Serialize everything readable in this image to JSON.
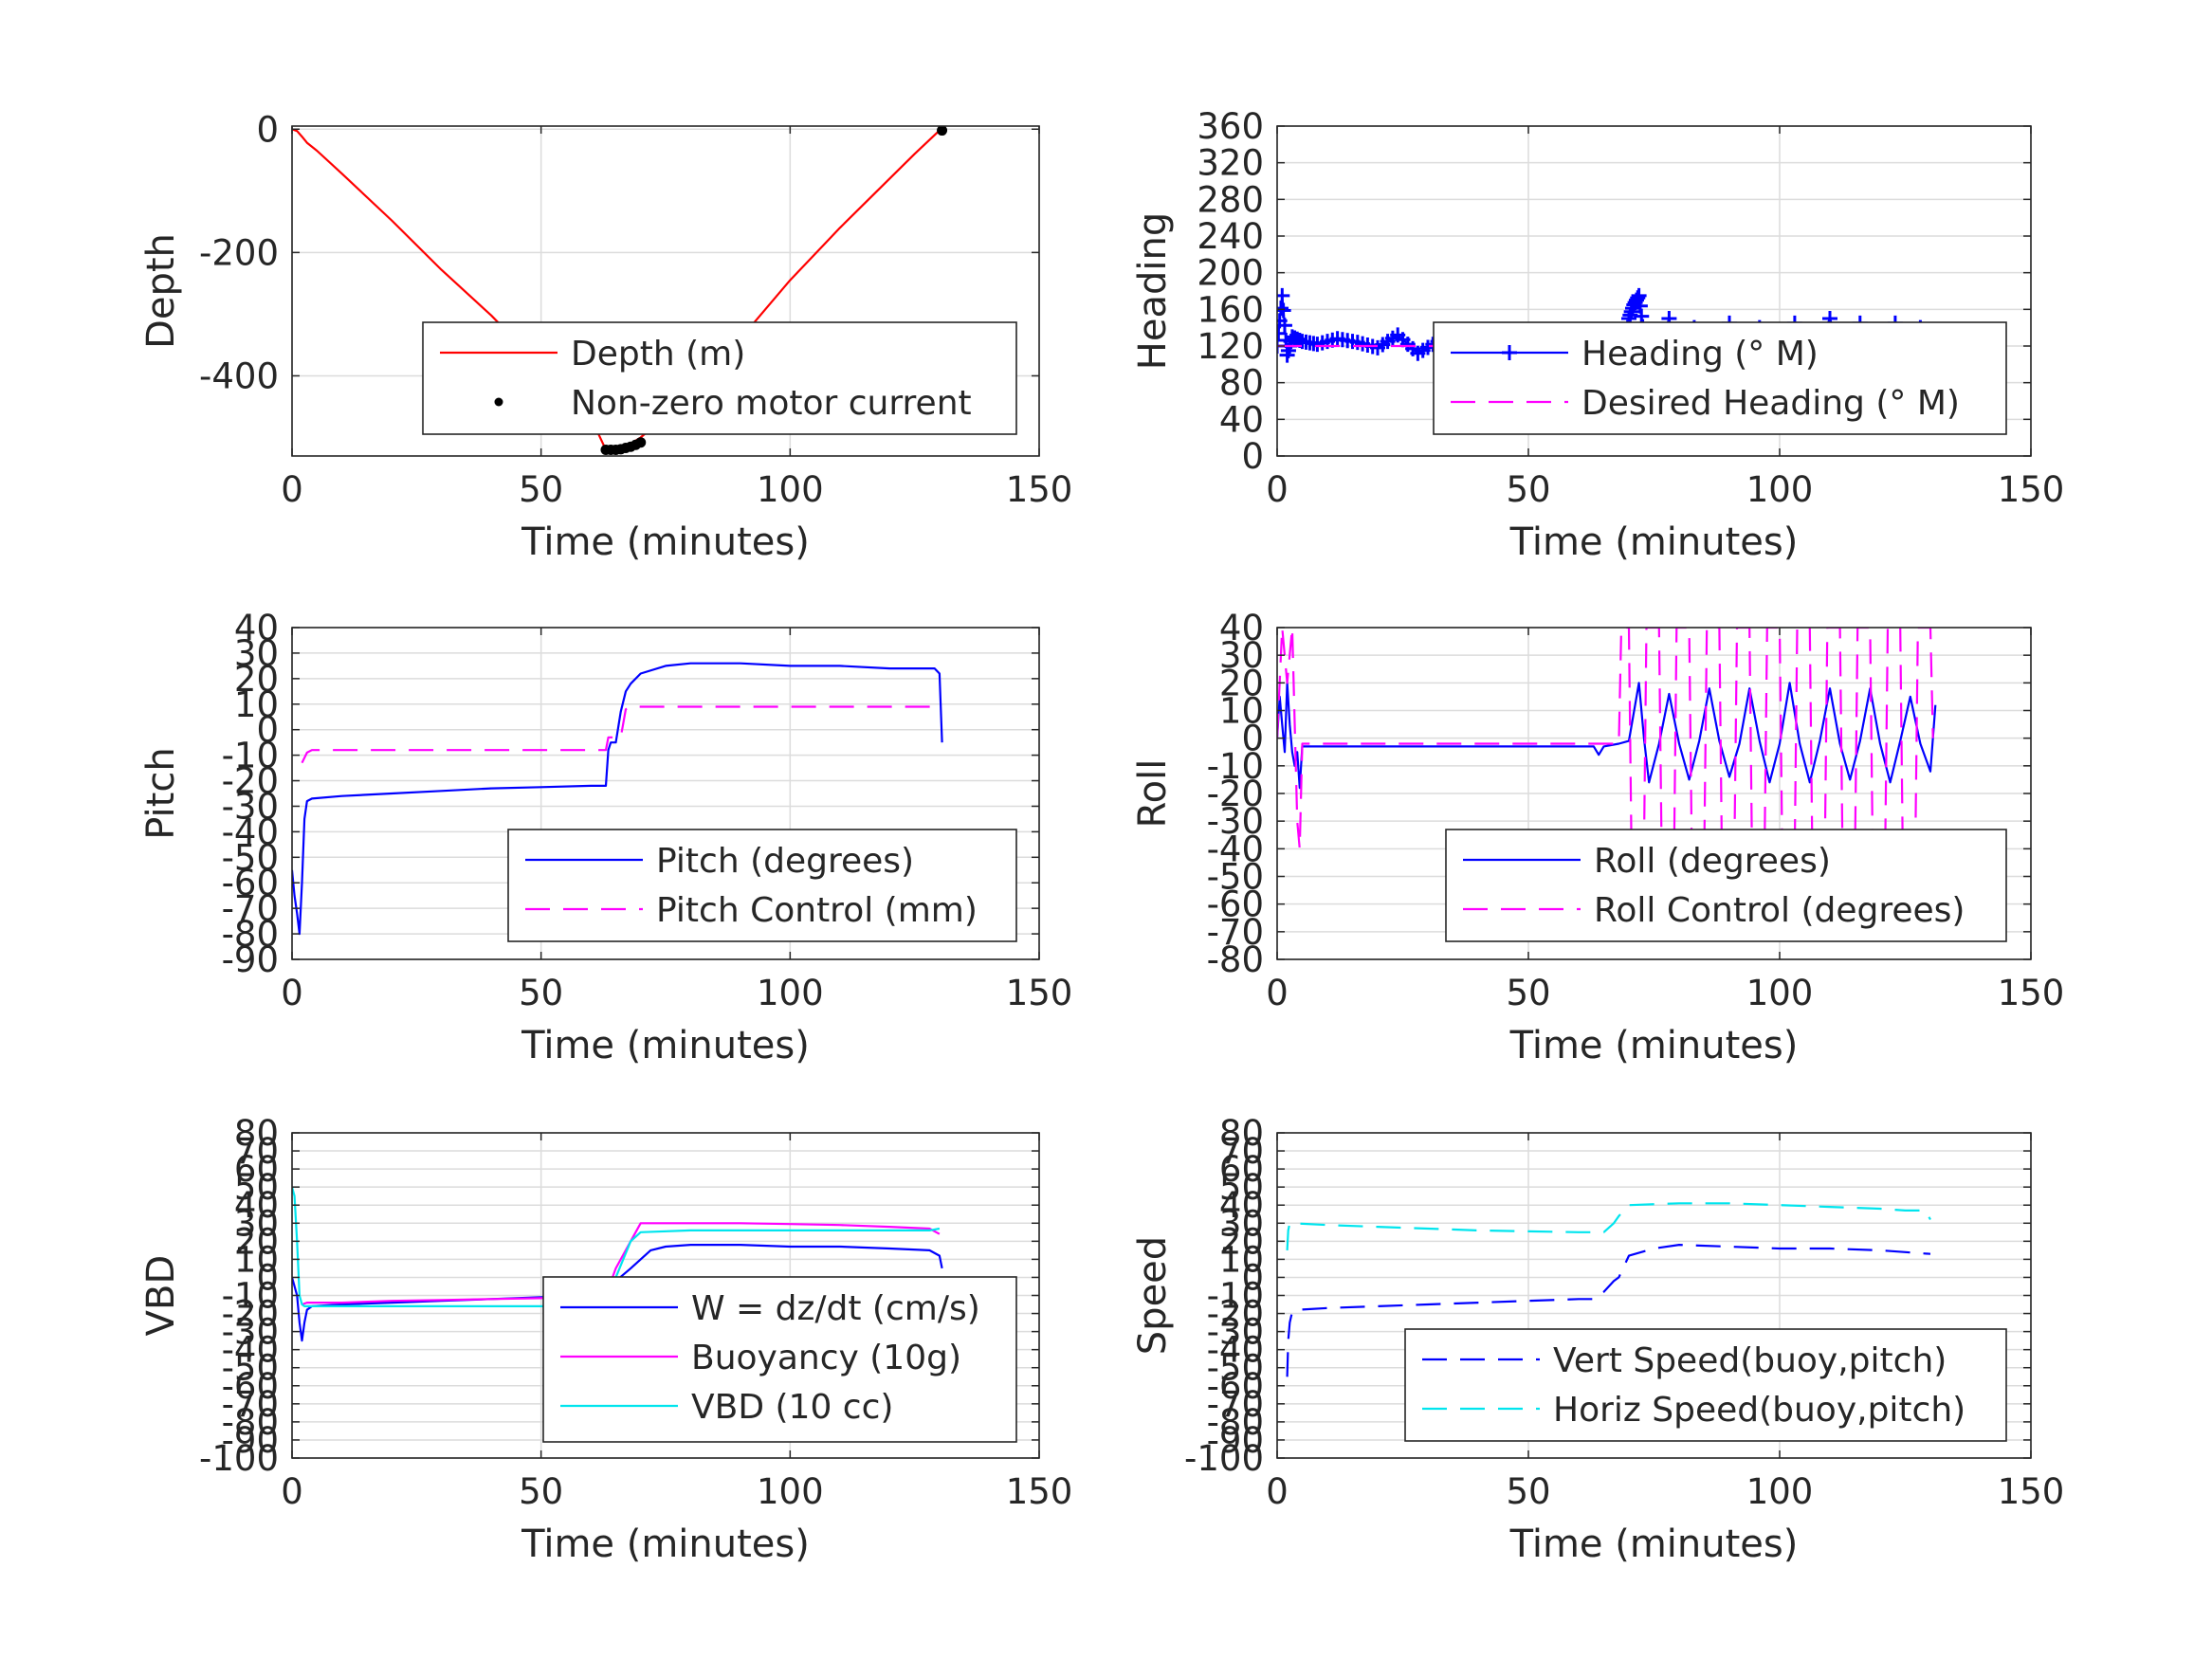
{
  "chart_data": [
    {
      "type": "line",
      "xlabel": "Time (minutes)",
      "ylabel": "Depth",
      "xlim": [
        0,
        150
      ],
      "ylim": [
        -530,
        5
      ],
      "xticks": [
        0,
        50,
        100,
        150
      ],
      "yticks": [
        -400,
        -200,
        0
      ],
      "xtick_labels": [
        "0",
        "50",
        "100",
        "150"
      ],
      "ytick_labels": [
        "-400",
        "-200",
        "0"
      ],
      "grid": true,
      "legend": "bottom-right",
      "series": [
        {
          "name": "Depth (m)",
          "color": "#ff0000",
          "style": "solid",
          "x": [
            0,
            1,
            2,
            3,
            5,
            10,
            20,
            30,
            40,
            50,
            55,
            60,
            63,
            65,
            67,
            70,
            80,
            90,
            100,
            110,
            120,
            125,
            130
          ],
          "y": [
            0,
            -3,
            -12,
            -22,
            -35,
            -72,
            -148,
            -228,
            -302,
            -385,
            -425,
            -468,
            -520,
            -520,
            -515,
            -500,
            -430,
            -340,
            -245,
            -160,
            -80,
            -40,
            -2
          ]
        },
        {
          "name": "Non-zero motor current",
          "color": "#000000",
          "style": "dots",
          "x": [
            63,
            64,
            65,
            66,
            67,
            68,
            69,
            70,
            130.5
          ],
          "y": [
            -520,
            -520,
            -520,
            -519,
            -517,
            -515,
            -512,
            -508,
            -2
          ]
        }
      ]
    },
    {
      "type": "line",
      "xlabel": "Time (minutes)",
      "ylabel": "Heading",
      "xlim": [
        0,
        150
      ],
      "ylim": [
        0,
        360
      ],
      "xticks": [
        0,
        50,
        100,
        150
      ],
      "yticks": [
        0,
        40,
        80,
        120,
        160,
        200,
        240,
        280,
        320,
        360
      ],
      "xtick_labels": [
        "0",
        "50",
        "100",
        "150"
      ],
      "ytick_labels": [
        "0",
        "40",
        "80",
        "120",
        "160",
        "200",
        "240",
        "280",
        "320",
        "360"
      ],
      "grid": true,
      "legend": "right",
      "series": [
        {
          "name": "Heading (° M)",
          "color": "#0000ff",
          "style": "plus-markers",
          "x": [
            0,
            1,
            2,
            3,
            5,
            8,
            12,
            16,
            20,
            24,
            28,
            32,
            36,
            40,
            45,
            50,
            55,
            60,
            63,
            65,
            67,
            68,
            69,
            70,
            71,
            72,
            73,
            75,
            78,
            80,
            83,
            86,
            90,
            93,
            96,
            100,
            103,
            106,
            110,
            113,
            116,
            120,
            123,
            126,
            128,
            130,
            131
          ],
          "y": [
            120,
            175,
            110,
            130,
            125,
            122,
            128,
            124,
            118,
            132,
            112,
            125,
            120,
            118,
            115,
            112,
            118,
            115,
            112,
            105,
            90,
            75,
            110,
            150,
            165,
            175,
            130,
            100,
            150,
            95,
            140,
            100,
            145,
            95,
            140,
            105,
            145,
            100,
            150,
            100,
            145,
            100,
            145,
            105,
            140,
            110,
            130
          ]
        },
        {
          "name": "Desired Heading (° M)",
          "color": "#ff00ff",
          "style": "dashed",
          "x": [
            0,
            131
          ],
          "y": [
            120,
            120
          ]
        }
      ]
    },
    {
      "type": "line",
      "xlabel": "Time (minutes)",
      "ylabel": "Pitch",
      "xlim": [
        0,
        150
      ],
      "ylim": [
        -90,
        40
      ],
      "xticks": [
        0,
        50,
        100,
        150
      ],
      "yticks": [
        -90,
        -80,
        -70,
        -60,
        -50,
        -40,
        -30,
        -20,
        -10,
        0,
        10,
        20,
        30,
        40
      ],
      "xtick_labels": [
        "0",
        "50",
        "100",
        "150"
      ],
      "ytick_labels": [
        "-90",
        "-80",
        "-70",
        "-60",
        "-50",
        "-40",
        "-30",
        "-20",
        "-10",
        "0",
        "10",
        "20",
        "30",
        "40"
      ],
      "grid": true,
      "legend": "bottom-right",
      "series": [
        {
          "name": "Pitch (degrees)",
          "color": "#0000ff",
          "style": "solid",
          "x": [
            0,
            0.5,
            1,
            1.5,
            2,
            2.5,
            3,
            4,
            10,
            20,
            30,
            40,
            50,
            60,
            63,
            63.5,
            64,
            65,
            66,
            67,
            68,
            70,
            75,
            80,
            85,
            90,
            100,
            110,
            120,
            125,
            129,
            130,
            130.5
          ],
          "y": [
            -55,
            -65,
            -72,
            -80,
            -60,
            -35,
            -28,
            -27,
            -26,
            -25,
            -24,
            -23,
            -22.5,
            -22,
            -22,
            -8,
            -5,
            -5,
            7,
            15,
            18,
            22,
            25,
            26,
            26,
            26,
            25,
            25,
            24,
            24,
            24,
            22,
            -5
          ]
        },
        {
          "name": "Pitch Control (mm)",
          "color": "#ff00ff",
          "style": "dashed",
          "x": [
            2,
            3,
            4,
            63,
            63.5,
            66,
            67,
            68,
            130
          ],
          "y": [
            -13,
            -9,
            -8,
            -8,
            -3,
            -3,
            8,
            9,
            9
          ]
        }
      ]
    },
    {
      "type": "line",
      "xlabel": "Time (minutes)",
      "ylabel": "Roll",
      "xlim": [
        0,
        150
      ],
      "ylim": [
        -80,
        40
      ],
      "xticks": [
        0,
        50,
        100,
        150
      ],
      "yticks": [
        -80,
        -70,
        -60,
        -50,
        -40,
        -30,
        -20,
        -10,
        0,
        10,
        20,
        30,
        40
      ],
      "xtick_labels": [
        "0",
        "50",
        "100",
        "150"
      ],
      "ytick_labels": [
        "-80",
        "-70",
        "-60",
        "-50",
        "-40",
        "-30",
        "-20",
        "-10",
        "0",
        "10",
        "20",
        "30",
        "40"
      ],
      "grid": true,
      "legend": "bottom-right",
      "series": [
        {
          "name": "Roll (degrees)",
          "color": "#0000ff",
          "style": "solid",
          "x": [
            0,
            0.5,
            1,
            1.5,
            2,
            2.5,
            3,
            3.5,
            4,
            4.5,
            5,
            10,
            20,
            30,
            40,
            50,
            60,
            63,
            64,
            65,
            68,
            70,
            72,
            73,
            74,
            76,
            78,
            80,
            82,
            84,
            86,
            88,
            90,
            92,
            94,
            96,
            98,
            100,
            102,
            104,
            106,
            108,
            110,
            112,
            114,
            116,
            118,
            120,
            122,
            124,
            126,
            128,
            130,
            131
          ],
          "y": [
            0,
            15,
            5,
            -5,
            20,
            5,
            -5,
            -10,
            -5,
            -18,
            -3,
            -3,
            -3,
            -3,
            -3,
            -3,
            -3,
            -3,
            -6,
            -3,
            -2,
            -1,
            20,
            0,
            -16,
            -2,
            16,
            -2,
            -15,
            -1,
            18,
            -1,
            -14,
            -2,
            18,
            -1,
            -16,
            -2,
            20,
            -2,
            -16,
            -1,
            18,
            -2,
            -15,
            -1,
            18,
            -2,
            -16,
            -1,
            15,
            -2,
            -12,
            12
          ]
        },
        {
          "name": "Roll Control (degrees)",
          "color": "#ff00ff",
          "style": "dashed",
          "x": [
            0,
            1,
            2,
            3,
            4,
            4.5,
            5,
            10,
            20,
            30,
            40,
            50,
            60,
            65,
            68,
            68.5,
            70,
            70.5,
            73,
            73.5,
            76,
            76.5,
            79,
            79.5,
            82,
            82.5,
            85,
            85.5,
            88,
            88.5,
            91,
            91.5,
            94,
            94.5,
            97,
            97.5,
            100,
            100.5,
            103,
            103.5,
            106,
            106.5,
            109,
            109.5,
            112,
            112.5,
            115,
            115.5,
            118,
            118.5,
            121,
            121.5,
            124,
            124.5,
            127,
            127.5,
            130,
            130.5
          ],
          "y": [
            0,
            40,
            20,
            40,
            -30,
            -40,
            -2,
            -2,
            -2,
            -2,
            -2,
            -2,
            -2,
            -2,
            -2,
            40,
            40,
            -40,
            -40,
            40,
            40,
            -40,
            -40,
            40,
            40,
            -40,
            -40,
            40,
            40,
            -40,
            -40,
            40,
            40,
            -40,
            -40,
            40,
            40,
            -40,
            -40,
            40,
            40,
            -40,
            -40,
            40,
            40,
            -40,
            -40,
            40,
            40,
            -40,
            -40,
            40,
            40,
            -40,
            -40,
            40,
            40,
            0
          ]
        }
      ]
    },
    {
      "type": "line",
      "xlabel": "Time (minutes)",
      "ylabel": "VBD",
      "xlim": [
        0,
        150
      ],
      "ylim": [
        -100,
        80
      ],
      "xticks": [
        0,
        50,
        100,
        150
      ],
      "yticks": [
        -100,
        -90,
        -80,
        -70,
        -60,
        -50,
        -40,
        -30,
        -20,
        -10,
        0,
        10,
        20,
        30,
        40,
        50,
        60,
        70,
        80
      ],
      "xtick_labels": [
        "0",
        "50",
        "100",
        "150"
      ],
      "ytick_labels": [
        "-100",
        "-90",
        "-80",
        "-70",
        "-60",
        "-50",
        "-40",
        "-30",
        "-20",
        "-10",
        "0",
        "10",
        "20",
        "30",
        "40",
        "50",
        "60",
        "70",
        "80"
      ],
      "grid": true,
      "legend": "bottom-right",
      "series": [
        {
          "name": "W = dz/dt (cm/s)",
          "color": "#0000ff",
          "style": "solid",
          "x": [
            0,
            1,
            1.5,
            2,
            2.5,
            3,
            4,
            10,
            20,
            30,
            40,
            50,
            60,
            63,
            65,
            68,
            70,
            72,
            75,
            80,
            90,
            100,
            110,
            120,
            128,
            130,
            130.5
          ],
          "y": [
            0,
            -10,
            -25,
            -35,
            -25,
            -18,
            -16,
            -15,
            -14,
            -13,
            -12,
            -11,
            -10,
            -10,
            -2,
            5,
            10,
            15,
            17,
            18,
            18,
            17,
            17,
            16,
            15,
            12,
            5
          ]
        },
        {
          "name": "Buoyancy (10g)",
          "color": "#ff00ff",
          "style": "solid",
          "x": [
            2,
            3,
            10,
            20,
            30,
            40,
            50,
            60,
            63,
            65,
            68,
            70,
            80,
            90,
            100,
            110,
            120,
            128,
            130
          ],
          "y": [
            -15,
            -14,
            -14,
            -13,
            -12.5,
            -12,
            -11.5,
            -10.5,
            -10,
            5,
            20,
            30,
            30,
            30,
            29.5,
            29,
            28,
            27,
            24
          ]
        },
        {
          "name": "VBD (10 cc)",
          "color": "#00e5ee",
          "style": "solid",
          "x": [
            0,
            0.5,
            1,
            1.5,
            2,
            2.5,
            3,
            10,
            20,
            30,
            40,
            50,
            60,
            63,
            65,
            68,
            70,
            80,
            100,
            120,
            128,
            130
          ],
          "y": [
            50,
            45,
            20,
            -10,
            -15,
            -16,
            -16,
            -16,
            -16,
            -16,
            -16,
            -16,
            -16,
            -16,
            0,
            20,
            25,
            26,
            26,
            26,
            26,
            27
          ]
        }
      ]
    },
    {
      "type": "line",
      "xlabel": "Time (minutes)",
      "ylabel": "Speed",
      "xlim": [
        0,
        150
      ],
      "ylim": [
        -100,
        80
      ],
      "xticks": [
        0,
        50,
        100,
        150
      ],
      "yticks": [
        -100,
        -90,
        -80,
        -70,
        -60,
        -50,
        -40,
        -30,
        -20,
        -10,
        0,
        10,
        20,
        30,
        40,
        50,
        60,
        70,
        80
      ],
      "xtick_labels": [
        "0",
        "50",
        "100",
        "150"
      ],
      "ytick_labels": [
        "-100",
        "-90",
        "-80",
        "-70",
        "-60",
        "-50",
        "-40",
        "-30",
        "-20",
        "-10",
        "0",
        "10",
        "20",
        "30",
        "40",
        "50",
        "60",
        "70",
        "80"
      ],
      "grid": true,
      "legend": "bottom-right",
      "series": [
        {
          "name": "Vert Speed(buoy,pitch)",
          "color": "#0000ff",
          "style": "dashed",
          "x": [
            2,
            2.2,
            2.5,
            3,
            4,
            10,
            20,
            30,
            40,
            50,
            60,
            63,
            65,
            67,
            68,
            70,
            75,
            80,
            90,
            100,
            110,
            120,
            125,
            130
          ],
          "y": [
            -55,
            -35,
            -25,
            -19,
            -18,
            -17,
            -16,
            -15,
            -14,
            -13,
            -12,
            -12,
            -8,
            -2,
            0,
            12,
            16,
            18,
            17,
            16,
            16,
            15,
            14,
            13
          ]
        },
        {
          "name": "Horiz Speed(buoy,pitch)",
          "color": "#00e5ee",
          "style": "dashed",
          "x": [
            2,
            2.2,
            2.5,
            3,
            10,
            20,
            30,
            40,
            50,
            60,
            63,
            65,
            67,
            68,
            70,
            80,
            90,
            100,
            110,
            120,
            125,
            129,
            130
          ],
          "y": [
            15,
            26,
            30,
            30,
            29,
            28,
            27,
            26,
            25.5,
            25,
            25,
            25,
            30,
            34,
            40,
            41,
            41,
            40,
            39,
            38,
            37,
            37,
            32
          ]
        }
      ]
    }
  ]
}
